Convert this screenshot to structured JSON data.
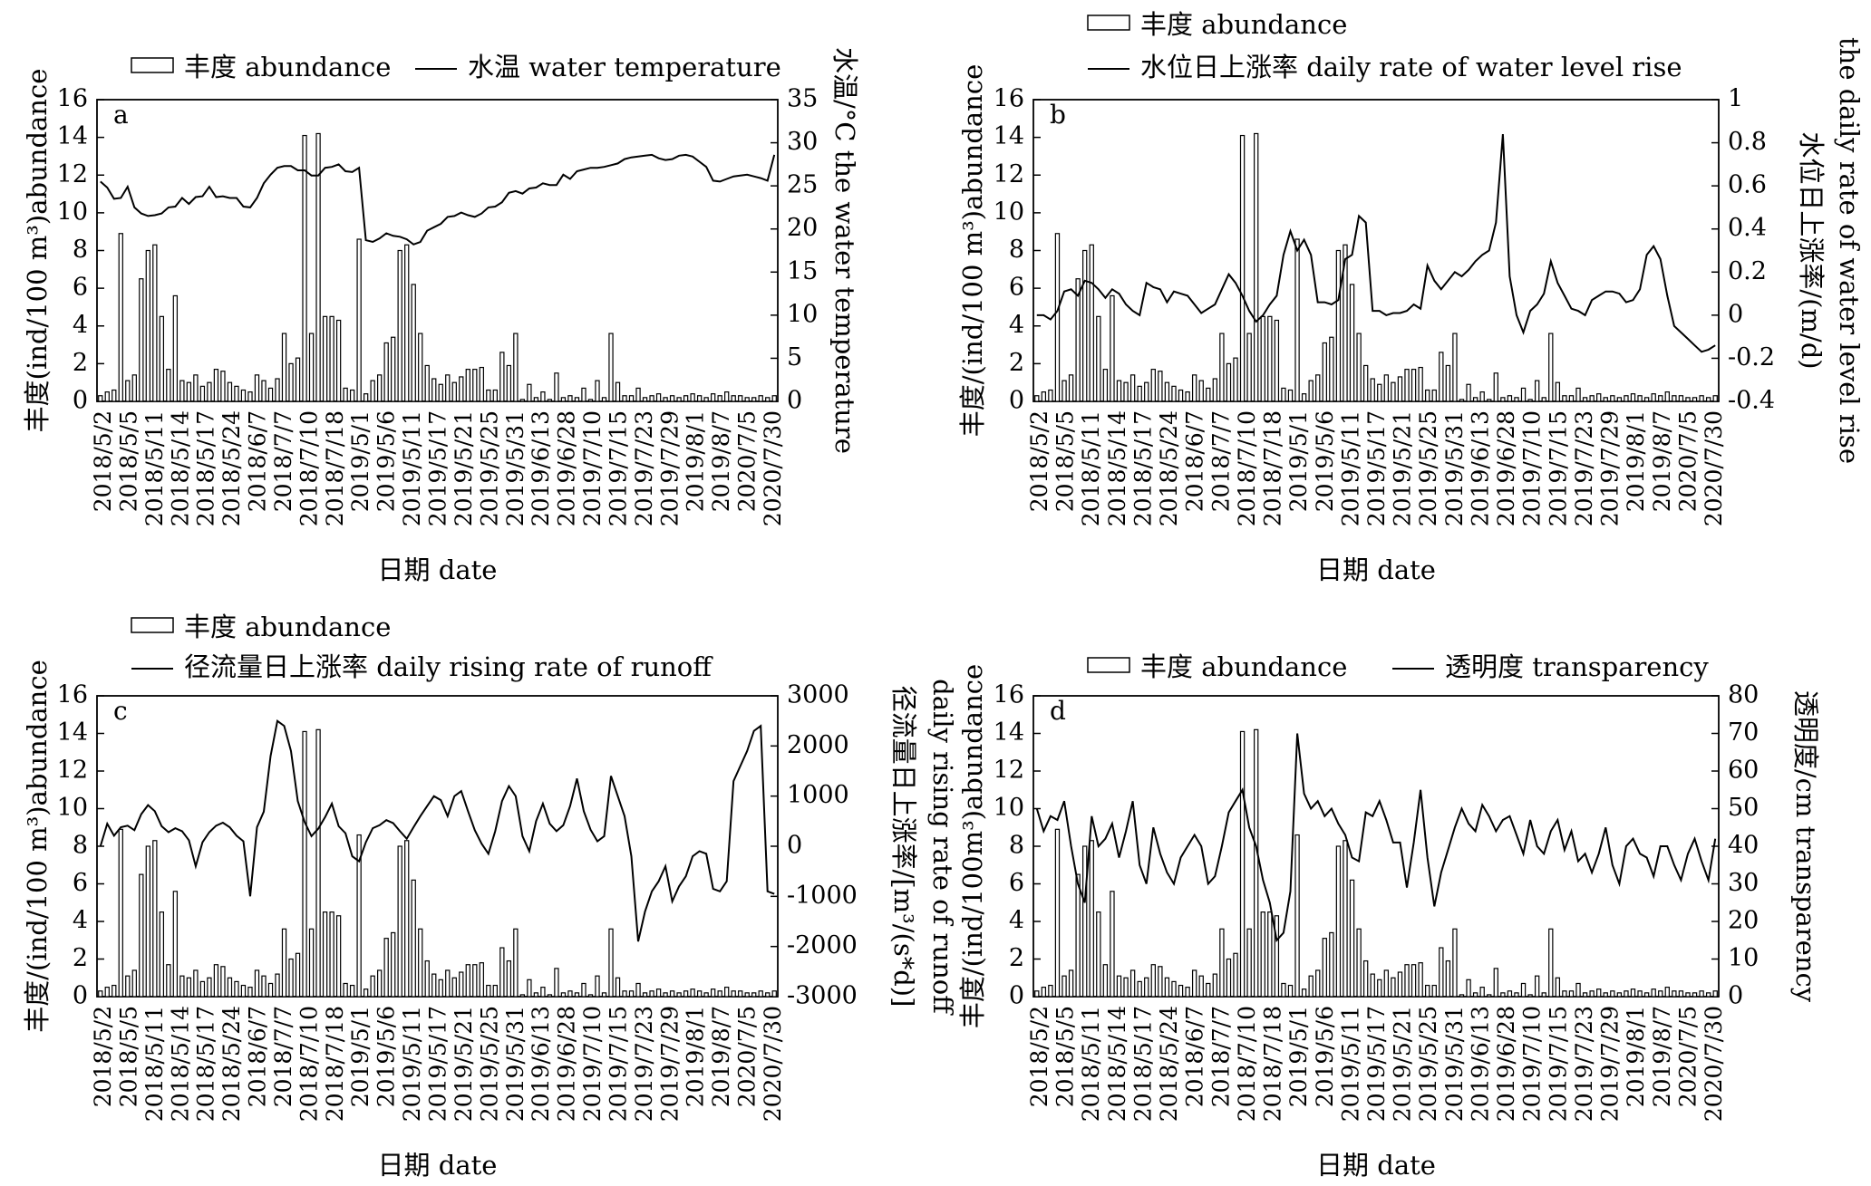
{
  "chart_data": [
    {
      "type": "bar",
      "panel": "a",
      "legend": {
        "bar": "丰度 abundance",
        "line": "水温 water temperature",
        "layout": "single-row"
      },
      "ylabel": "丰度(ind/100 m³)abundance",
      "y2label": [
        "水温/°C the water temperature"
      ],
      "xlabel": "日期 date",
      "ylim": [
        0,
        16
      ],
      "yticks": [
        0,
        2,
        4,
        6,
        8,
        10,
        12,
        14,
        16
      ],
      "y2lim": [
        0,
        35
      ],
      "y2ticks": [
        0,
        5,
        10,
        15,
        20,
        25,
        30,
        35
      ],
      "line_series": [
        25.5,
        24.8,
        23.5,
        23.6,
        24.9,
        22.5,
        21.8,
        21.5,
        21.6,
        21.8,
        22.5,
        22.6,
        23.6,
        22.9,
        23.7,
        23.8,
        24.9,
        23.7,
        23.8,
        23.6,
        23.6,
        22.6,
        22.5,
        23.6,
        25.3,
        26.3,
        27.1,
        27.3,
        27.3,
        26.8,
        26.8,
        26.2,
        26.2,
        27.1,
        27.2,
        27.5,
        26.7,
        26.6,
        27.1,
        18.7,
        18.5,
        18.9,
        19.5,
        19.2,
        19.1,
        18.8,
        18.2,
        18.5,
        19.8,
        20.2,
        20.6,
        21.4,
        21.5,
        21.9,
        21.6,
        21.4,
        21.8,
        22.5,
        22.6,
        23.1,
        24.2,
        24.4,
        24.1,
        24.7,
        24.8,
        25.3,
        25.1,
        25.1,
        26.3,
        25.8,
        26.7,
        26.9,
        27.1,
        27.1,
        27.2,
        27.4,
        27.6,
        28.1,
        28.3,
        28.4,
        28.5,
        28.6,
        28.2,
        28.0,
        28.1,
        28.5,
        28.6,
        28.4,
        27.8,
        27.2,
        25.6,
        25.5,
        25.8,
        26.1,
        26.2,
        26.3,
        26.1,
        25.9,
        25.6,
        28.6
      ]
    },
    {
      "type": "bar",
      "panel": "b",
      "legend": {
        "bar": "丰度 abundance",
        "line": "水位日上涨率 daily rate of water level rise",
        "layout": "two-rows"
      },
      "ylabel": "丰度/(ind/100 m³)abundance",
      "y2label": [
        "水位日上涨率/(m/d)",
        "the daily rate of water level rise"
      ],
      "xlabel": "日期 date",
      "ylim": [
        0,
        16
      ],
      "yticks": [
        0,
        2,
        4,
        6,
        8,
        10,
        12,
        14,
        16
      ],
      "y2lim": [
        -0.4,
        1
      ],
      "y2ticks": [
        -0.4,
        -0.2,
        0,
        0.2,
        0.4,
        0.6,
        0.8,
        1
      ],
      "line_series": [
        0.0,
        0.0,
        -0.02,
        0.02,
        0.11,
        0.12,
        0.09,
        0.16,
        0.15,
        0.12,
        0.08,
        0.12,
        0.1,
        0.05,
        0.02,
        0.0,
        0.15,
        0.13,
        0.12,
        0.06,
        0.11,
        0.1,
        0.09,
        0.05,
        0.01,
        0.03,
        0.05,
        0.12,
        0.19,
        0.15,
        0.09,
        0.02,
        -0.03,
        0.0,
        0.05,
        0.09,
        0.28,
        0.39,
        0.3,
        0.35,
        0.28,
        0.06,
        0.06,
        0.05,
        0.07,
        0.26,
        0.28,
        0.46,
        0.43,
        0.02,
        0.02,
        0.0,
        0.01,
        0.01,
        0.02,
        0.05,
        0.03,
        0.23,
        0.16,
        0.12,
        0.16,
        0.2,
        0.18,
        0.21,
        0.25,
        0.28,
        0.3,
        0.43,
        0.84,
        0.18,
        0.0,
        -0.08,
        0.02,
        0.05,
        0.1,
        0.25,
        0.15,
        0.09,
        0.03,
        0.02,
        0.0,
        0.07,
        0.09,
        0.11,
        0.11,
        0.1,
        0.06,
        0.07,
        0.12,
        0.28,
        0.32,
        0.26,
        0.09,
        -0.05,
        -0.08,
        -0.11,
        -0.14,
        -0.17,
        -0.16,
        -0.14
      ]
    },
    {
      "type": "bar",
      "panel": "c",
      "legend": {
        "bar": "丰度 abundance",
        "line": "径流量日上涨率 daily rising rate of runoff",
        "layout": "two-rows"
      },
      "ylabel": "丰度/(ind/100 m³)abundance",
      "y2label": [
        "径流量日上涨率/[m³/(s*d)]",
        "daily rising rate of runoff"
      ],
      "xlabel": "日期 date",
      "ylim": [
        0,
        16
      ],
      "yticks": [
        0,
        2,
        4,
        6,
        8,
        10,
        12,
        14,
        16
      ],
      "y2lim": [
        -3000,
        3000
      ],
      "y2ticks": [
        -3000,
        -2000,
        -1000,
        0,
        1000,
        2000,
        3000
      ],
      "line_series": [
        0,
        450,
        210,
        380,
        410,
        320,
        640,
        820,
        700,
        400,
        280,
        360,
        300,
        120,
        -400,
        80,
        280,
        410,
        470,
        380,
        210,
        100,
        -1000,
        380,
        690,
        1800,
        2500,
        2400,
        1900,
        900,
        480,
        200,
        350,
        580,
        850,
        400,
        260,
        -200,
        -300,
        80,
        360,
        420,
        520,
        460,
        300,
        150,
        380,
        600,
        800,
        1000,
        920,
        600,
        1000,
        1100,
        700,
        320,
        50,
        -150,
        300,
        900,
        1200,
        1000,
        200,
        -100,
        500,
        850,
        450,
        300,
        420,
        800,
        1350,
        700,
        330,
        100,
        200,
        1400,
        1000,
        600,
        -200,
        -1900,
        -1300,
        -900,
        -700,
        -400,
        -1100,
        -800,
        -600,
        -200,
        -100,
        -150,
        -850,
        -900,
        -700,
        1300,
        1600,
        1900,
        2300,
        2400,
        -900,
        -950
      ]
    },
    {
      "type": "bar",
      "panel": "d",
      "legend": {
        "bar": "丰度 abundance",
        "line": "透明度 transparency",
        "layout": "single-row"
      },
      "ylabel": "丰度/(ind/100m³)abundance",
      "y2label": [
        "透明度/cm transparency"
      ],
      "xlabel": "日期 date",
      "ylim": [
        0,
        16
      ],
      "yticks": [
        0,
        2,
        4,
        6,
        8,
        10,
        12,
        14,
        16
      ],
      "y2lim": [
        0,
        80
      ],
      "y2ticks": [
        0,
        10,
        20,
        30,
        40,
        50,
        60,
        70,
        80
      ],
      "line_series": [
        50,
        44,
        48,
        47,
        52,
        40,
        30,
        25,
        48,
        40,
        42,
        46,
        37,
        44,
        52,
        35,
        30,
        45,
        38,
        33,
        30,
        37,
        40,
        43,
        40,
        30,
        32,
        40,
        49,
        52,
        55,
        45,
        40,
        31,
        25,
        15,
        17,
        28,
        70,
        54,
        50,
        52,
        48,
        50,
        46,
        43,
        37,
        36,
        49,
        48,
        52,
        47,
        41,
        41,
        29,
        41,
        55,
        37,
        24,
        33,
        39,
        45,
        50,
        46,
        44,
        51,
        48,
        44,
        47,
        48,
        43,
        38,
        47,
        40,
        38,
        44,
        47,
        39,
        44,
        36,
        38,
        33,
        38,
        45,
        35,
        30,
        40,
        42,
        38,
        37,
        32,
        40,
        40,
        35,
        31,
        38,
        42,
        36,
        31,
        42
      ]
    }
  ],
  "shared": {
    "abundance": [
      0.3,
      0.5,
      0.6,
      8.9,
      1.1,
      1.4,
      6.5,
      8.0,
      8.3,
      4.5,
      1.7,
      5.6,
      1.1,
      1.0,
      1.4,
      0.8,
      1.0,
      1.7,
      1.6,
      1.0,
      0.8,
      0.6,
      0.5,
      1.4,
      1.1,
      0.7,
      1.2,
      3.6,
      2.0,
      2.3,
      14.1,
      3.6,
      14.2,
      4.5,
      4.5,
      4.3,
      0.7,
      0.6,
      8.6,
      0.4,
      1.1,
      1.4,
      3.1,
      3.4,
      8.0,
      8.3,
      6.2,
      3.6,
      1.9,
      1.2,
      0.9,
      1.4,
      1.0,
      1.3,
      1.7,
      1.7,
      1.8,
      0.6,
      0.6,
      2.6,
      1.9,
      3.6,
      0.1,
      0.9,
      0.2,
      0.5,
      0.1,
      1.5,
      0.2,
      0.3,
      0.2,
      0.7,
      0.1,
      1.1,
      0.2,
      3.6,
      1.0,
      0.3,
      0.3,
      0.7,
      0.2,
      0.3,
      0.4,
      0.2,
      0.3,
      0.2,
      0.3,
      0.4,
      0.3,
      0.2,
      0.4,
      0.3,
      0.5,
      0.3,
      0.3,
      0.2,
      0.2,
      0.3,
      0.2,
      0.3
    ],
    "xtick_labels": [
      "2018/5/2",
      "2018/5/5",
      "2018/5/11",
      "2018/5/14",
      "2018/5/17",
      "2018/5/24",
      "2018/6/7",
      "2018/7/7",
      "2018/7/10",
      "2018/7/18",
      "2019/5/1",
      "2019/5/6",
      "2019/5/11",
      "2019/5/17",
      "2019/5/21",
      "2019/5/25",
      "2019/5/31",
      "2019/6/13",
      "2019/6/28",
      "2019/7/10",
      "2019/7/15",
      "2019/7/23",
      "2019/7/29",
      "2019/8/1",
      "2019/8/7",
      "2020/7/5",
      "2020/7/30"
    ],
    "xtick_labels_d": [
      "2018/5/2",
      "2018/5/5",
      "2018/5/11",
      "2018/5/14",
      "2018/5/17",
      "2018/5/24",
      "2018/6/7",
      "2018/7/7",
      "2018/7/10",
      "2018/7/18",
      "2019/5/1",
      "2019/5/6",
      "2019/5/11",
      "2019/5/17",
      "2019/5/21",
      "2019/5/25",
      "2019/5/31",
      "2019/6/13",
      "2019/6/28",
      "2019/7/10",
      "2019/7/15",
      "2019/7/23",
      "2019/7/29",
      "2019/8/1",
      "2019/8/7",
      "2020/7/5",
      "2020/7/30"
    ]
  },
  "colors": {
    "ink": "#000000",
    "bar_fill": "#ffffff",
    "background": "#ffffff"
  }
}
